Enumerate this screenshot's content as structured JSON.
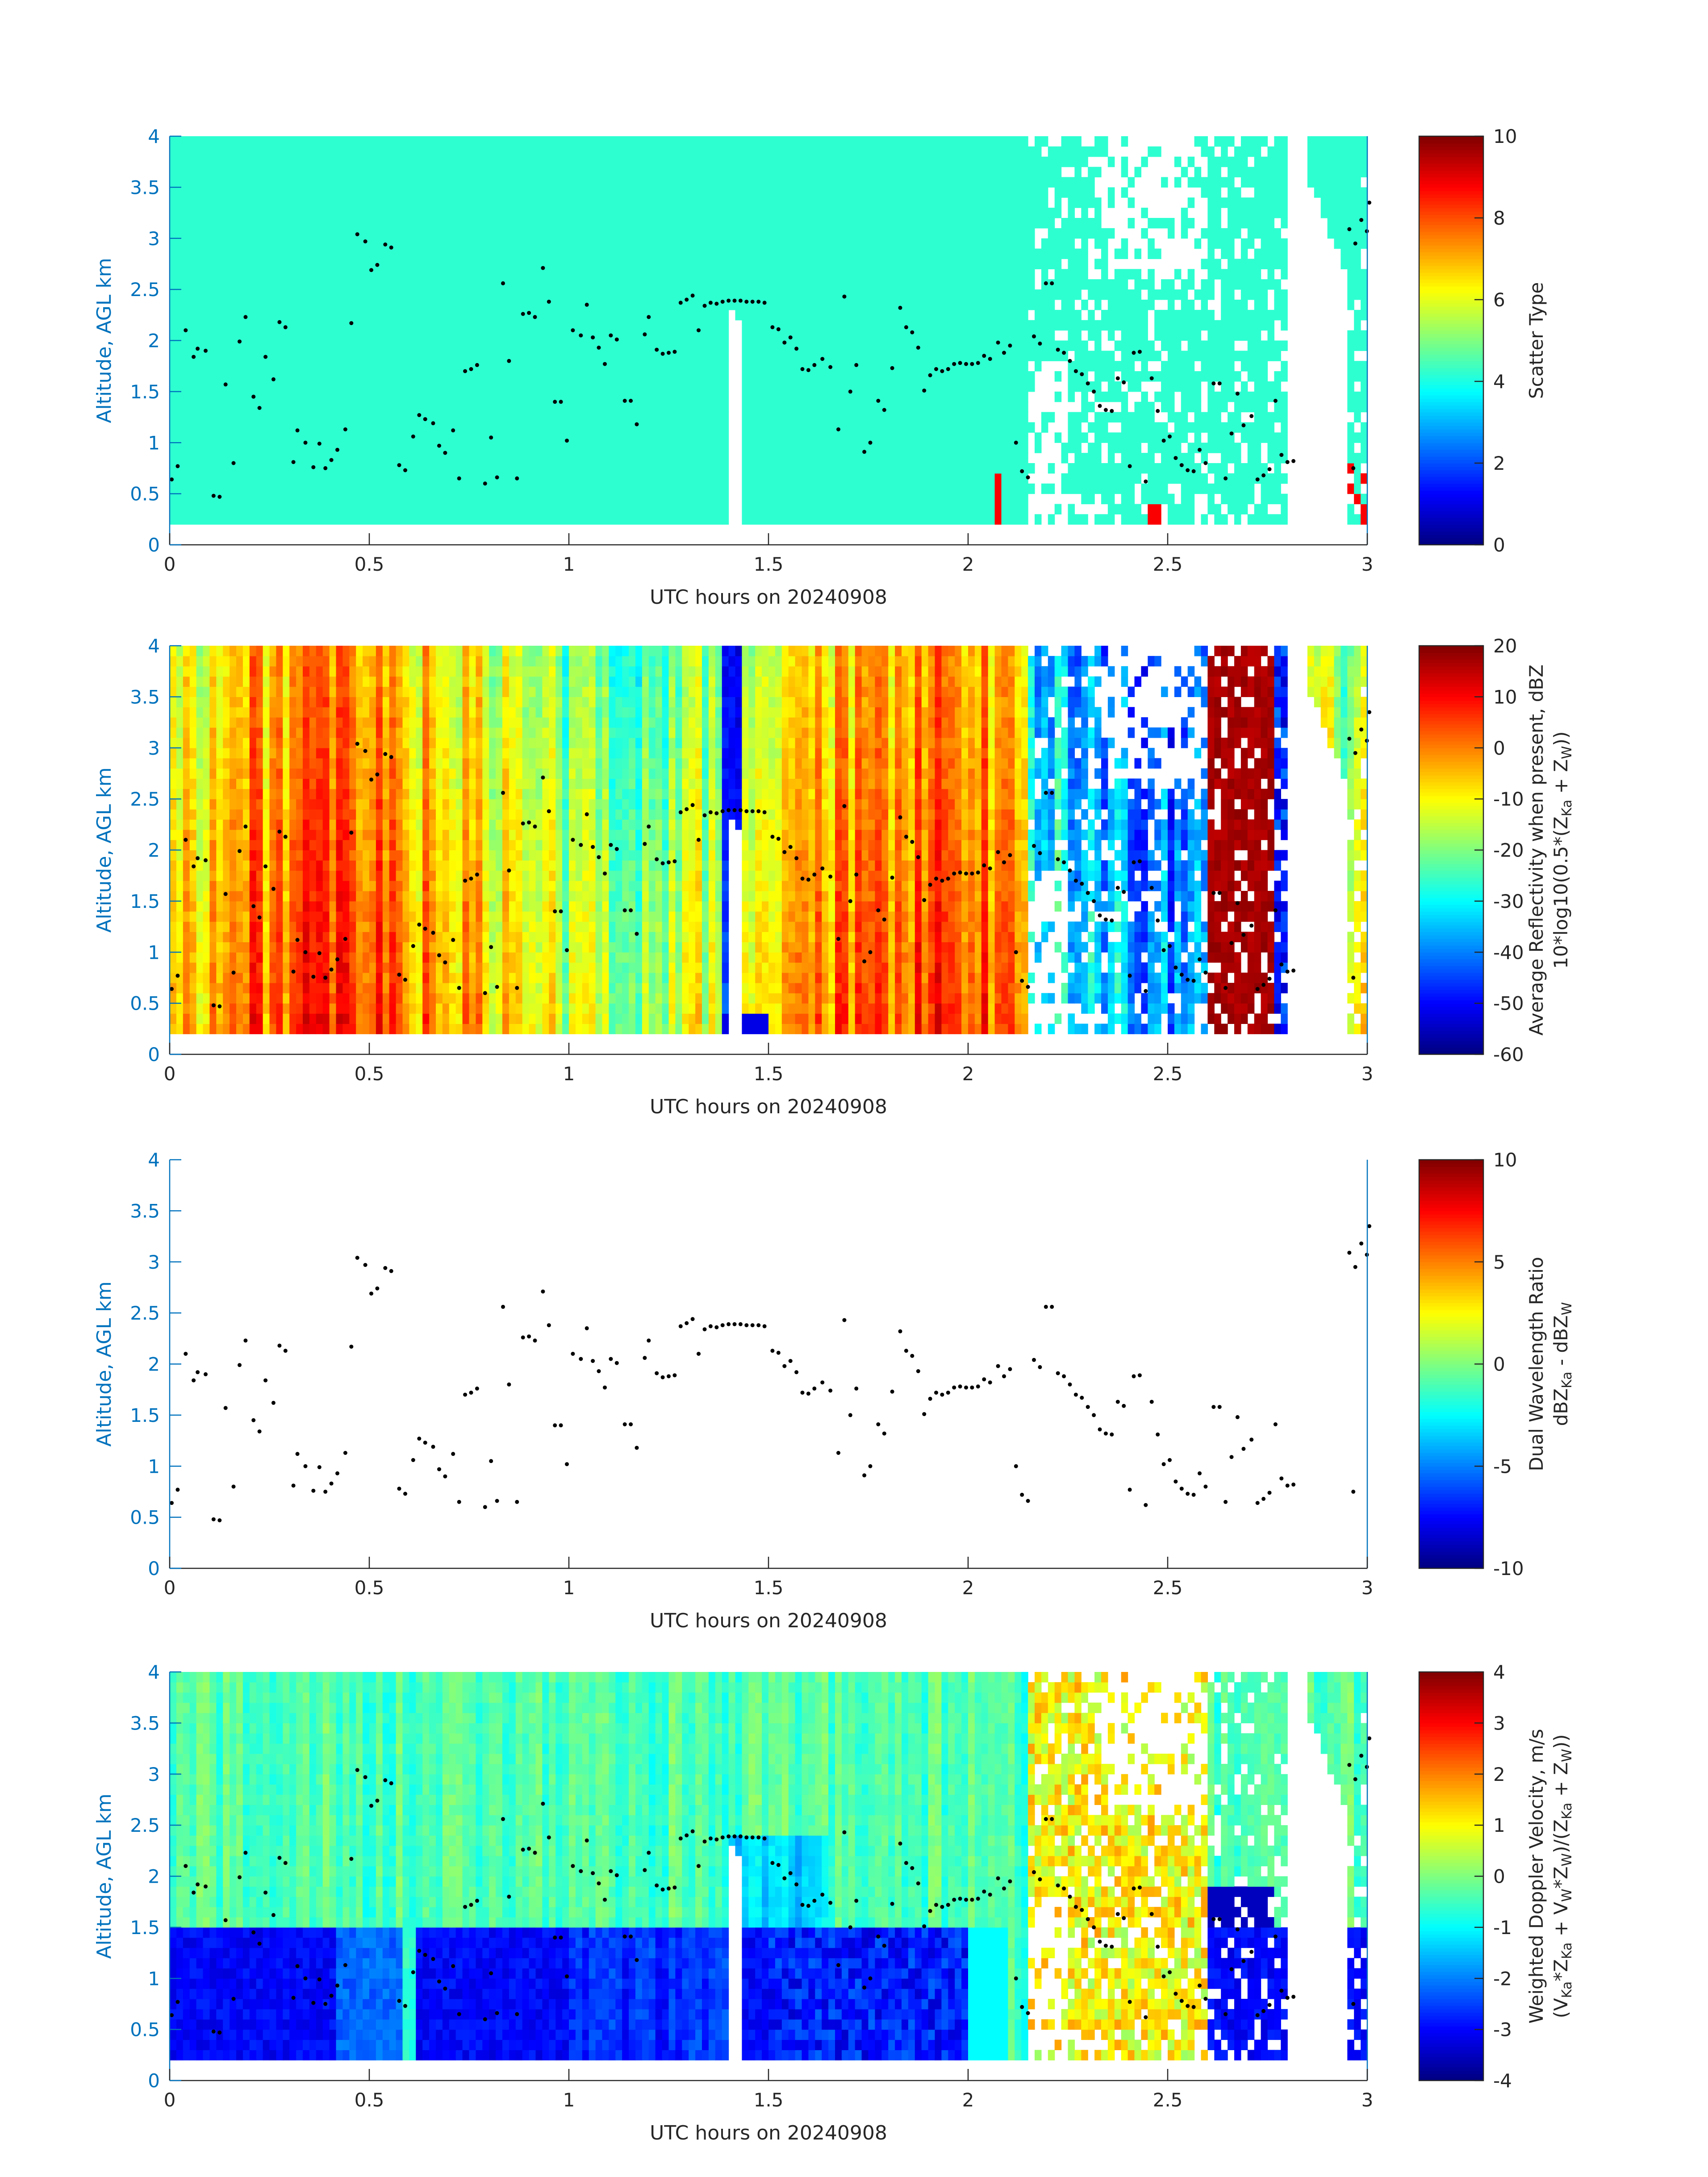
{
  "chart_data": [
    {
      "type": "heatmap",
      "xlabel": "UTC hours on 20240908",
      "ylabel": "Altitude, AGL km",
      "xlim": [
        0,
        3
      ],
      "ylim": [
        0,
        4
      ],
      "xticks": [
        "0",
        "0.5",
        "1",
        "1.5",
        "2",
        "2.5",
        "3"
      ],
      "yticks": [
        "0",
        "0.5",
        "1",
        "1.5",
        "2",
        "2.5",
        "3",
        "3.5",
        "4"
      ],
      "colorbar": {
        "label": "Scatter Type",
        "ticks": [
          "0",
          "2",
          "4",
          "6",
          "8",
          "10"
        ],
        "range": [
          0,
          10
        ],
        "colormap": "jet"
      },
      "dominant_value": 4.2,
      "secondary_value": 8.8
    },
    {
      "type": "heatmap",
      "xlabel": "UTC hours on 20240908",
      "ylabel": "Altitude, AGL km",
      "xlim": [
        0,
        3
      ],
      "ylim": [
        0,
        4
      ],
      "xticks": [
        "0",
        "0.5",
        "1",
        "1.5",
        "2",
        "2.5",
        "3"
      ],
      "yticks": [
        "0",
        "0.5",
        "1",
        "1.5",
        "2",
        "2.5",
        "3",
        "3.5",
        "4"
      ],
      "colorbar": {
        "label_line1": "Average Reflectivity when present, dBZ",
        "label_line2": "10*log10(0.5*(Z",
        "label_sub1": "Ka",
        "label_mid": " + Z",
        "label_sub2": "W",
        "label_end": "))",
        "ticks": [
          "-60",
          "-50",
          "-40",
          "-30",
          "-20",
          "-10",
          "0",
          "10",
          "20"
        ],
        "range": [
          -60,
          20
        ],
        "colormap": "jet"
      }
    },
    {
      "type": "heatmap",
      "xlabel": "UTC hours on 20240908",
      "ylabel": "Altitude, AGL km",
      "xlim": [
        0,
        3
      ],
      "ylim": [
        0,
        4
      ],
      "xticks": [
        "0",
        "0.5",
        "1",
        "1.5",
        "2",
        "2.5",
        "3"
      ],
      "yticks": [
        "0",
        "0.5",
        "1",
        "1.5",
        "2",
        "2.5",
        "3",
        "3.5",
        "4"
      ],
      "colorbar": {
        "label_line1": "Dual Wavelength Ratio",
        "label_line2": "dBZ",
        "label_sub1": "Ka",
        "label_mid": " - dBZ",
        "label_sub2": "W",
        "label_end": "",
        "ticks": [
          "-10",
          "-5",
          "0",
          "5",
          "10"
        ],
        "range": [
          -10,
          10
        ],
        "colormap": "jet"
      }
    },
    {
      "type": "heatmap",
      "xlabel": "UTC hours on 20240908",
      "ylabel": "Altitude, AGL km",
      "xlim": [
        0,
        3
      ],
      "ylim": [
        0,
        4
      ],
      "xticks": [
        "0",
        "0.5",
        "1",
        "1.5",
        "2",
        "2.5",
        "3"
      ],
      "yticks": [
        "0",
        "0.5",
        "1",
        "1.5",
        "2",
        "2.5",
        "3",
        "3.5",
        "4"
      ],
      "colorbar": {
        "label_line1": "Weighted Doppler Velocity, m/s",
        "label_line2": "(V",
        "label_sub1": "Ka",
        "label_mid": "*Z",
        "label_sub2": "Ka",
        "label_end": " + V",
        "label_sub3": "W",
        "label_end2": "*Z",
        "label_sub4": "W",
        "label_end3": ")/(Z",
        "label_sub5": "Ka",
        "label_end4": " + Z",
        "label_sub6": "W",
        "label_end5": "))",
        "ticks": [
          "-4",
          "-3",
          "-2",
          "-1",
          "0",
          "1",
          "2",
          "3",
          "4"
        ],
        "range": [
          -4,
          4
        ],
        "colormap": "jet"
      }
    }
  ],
  "cloud_base_points": [
    [
      0.005,
      0.64
    ],
    [
      0.02,
      0.77
    ],
    [
      0.04,
      2.1
    ],
    [
      0.06,
      1.84
    ],
    [
      0.07,
      1.92
    ],
    [
      0.09,
      1.9
    ],
    [
      0.11,
      0.48
    ],
    [
      0.125,
      0.47
    ],
    [
      0.14,
      1.57
    ],
    [
      0.16,
      0.8
    ],
    [
      0.175,
      1.99
    ],
    [
      0.19,
      2.23
    ],
    [
      0.21,
      1.45
    ],
    [
      0.225,
      1.34
    ],
    [
      0.24,
      1.84
    ],
    [
      0.26,
      1.62
    ],
    [
      0.275,
      2.18
    ],
    [
      0.29,
      2.13
    ],
    [
      0.31,
      0.81
    ],
    [
      0.32,
      1.12
    ],
    [
      0.34,
      1.0
    ],
    [
      0.36,
      0.76
    ],
    [
      0.375,
      0.99
    ],
    [
      0.39,
      0.75
    ],
    [
      0.405,
      0.83
    ],
    [
      0.42,
      0.93
    ],
    [
      0.44,
      1.13
    ],
    [
      0.455,
      2.17
    ],
    [
      0.47,
      3.04
    ],
    [
      0.49,
      2.97
    ],
    [
      0.505,
      2.69
    ],
    [
      0.52,
      2.74
    ],
    [
      0.54,
      2.94
    ],
    [
      0.555,
      2.91
    ],
    [
      0.575,
      0.78
    ],
    [
      0.59,
      0.73
    ],
    [
      0.61,
      1.06
    ],
    [
      0.625,
      1.27
    ],
    [
      0.64,
      1.23
    ],
    [
      0.66,
      1.19
    ],
    [
      0.675,
      0.97
    ],
    [
      0.69,
      0.9
    ],
    [
      0.71,
      1.12
    ],
    [
      0.725,
      0.65
    ],
    [
      0.74,
      1.7
    ],
    [
      0.755,
      1.72
    ],
    [
      0.77,
      1.76
    ],
    [
      0.79,
      0.6
    ],
    [
      0.805,
      1.05
    ],
    [
      0.82,
      0.66
    ],
    [
      0.835,
      2.56
    ],
    [
      0.85,
      1.8
    ],
    [
      0.87,
      0.65
    ],
    [
      0.885,
      2.26
    ],
    [
      0.9,
      2.27
    ],
    [
      0.915,
      2.23
    ],
    [
      0.935,
      2.71
    ],
    [
      0.95,
      2.38
    ],
    [
      0.965,
      1.4
    ],
    [
      0.98,
      1.4
    ],
    [
      0.995,
      1.02
    ],
    [
      1.01,
      2.1
    ],
    [
      1.03,
      2.05
    ],
    [
      1.045,
      2.35
    ],
    [
      1.06,
      2.03
    ],
    [
      1.075,
      1.93
    ],
    [
      1.09,
      1.77
    ],
    [
      1.105,
      2.05
    ],
    [
      1.12,
      2.01
    ],
    [
      1.14,
      1.41
    ],
    [
      1.155,
      1.41
    ],
    [
      1.17,
      1.18
    ],
    [
      1.19,
      2.06
    ],
    [
      1.2,
      2.23
    ],
    [
      1.22,
      1.91
    ],
    [
      1.235,
      1.87
    ],
    [
      1.25,
      1.88
    ],
    [
      1.265,
      1.89
    ],
    [
      1.28,
      2.37
    ],
    [
      1.295,
      2.4
    ],
    [
      1.31,
      2.44
    ],
    [
      1.325,
      2.1
    ],
    [
      1.34,
      2.34
    ],
    [
      1.355,
      2.37
    ],
    [
      1.37,
      2.36
    ],
    [
      1.385,
      2.38
    ],
    [
      1.4,
      2.39
    ],
    [
      1.415,
      2.39
    ],
    [
      1.43,
      2.39
    ],
    [
      1.445,
      2.38
    ],
    [
      1.46,
      2.38
    ],
    [
      1.475,
      2.38
    ],
    [
      1.49,
      2.37
    ],
    [
      1.51,
      2.13
    ],
    [
      1.525,
      2.11
    ],
    [
      1.54,
      1.98
    ],
    [
      1.555,
      2.03
    ],
    [
      1.57,
      1.92
    ],
    [
      1.585,
      1.72
    ],
    [
      1.6,
      1.71
    ],
    [
      1.615,
      1.76
    ],
    [
      1.635,
      1.82
    ],
    [
      1.655,
      1.74
    ],
    [
      1.675,
      1.13
    ],
    [
      1.69,
      2.43
    ],
    [
      1.705,
      1.5
    ],
    [
      1.72,
      1.76
    ],
    [
      1.74,
      0.91
    ],
    [
      1.755,
      1.0
    ],
    [
      1.775,
      1.41
    ],
    [
      1.79,
      1.32
    ],
    [
      1.81,
      1.73
    ],
    [
      1.83,
      2.32
    ],
    [
      1.845,
      2.13
    ],
    [
      1.86,
      2.08
    ],
    [
      1.875,
      1.93
    ],
    [
      1.89,
      1.51
    ],
    [
      1.905,
      1.66
    ],
    [
      1.92,
      1.72
    ],
    [
      1.935,
      1.7
    ],
    [
      1.95,
      1.72
    ],
    [
      1.965,
      1.77
    ],
    [
      1.98,
      1.78
    ],
    [
      1.995,
      1.77
    ],
    [
      2.01,
      1.77
    ],
    [
      2.025,
      1.78
    ],
    [
      2.04,
      1.85
    ],
    [
      2.055,
      1.82
    ],
    [
      2.075,
      1.98
    ],
    [
      2.09,
      1.88
    ],
    [
      2.105,
      1.95
    ],
    [
      2.12,
      1.0
    ],
    [
      2.135,
      0.72
    ],
    [
      2.15,
      0.66
    ],
    [
      2.165,
      2.04
    ],
    [
      2.18,
      1.97
    ],
    [
      2.195,
      2.56
    ],
    [
      2.21,
      2.56
    ],
    [
      2.225,
      1.91
    ],
    [
      2.24,
      1.88
    ],
    [
      2.255,
      1.8
    ],
    [
      2.27,
      1.7
    ],
    [
      2.285,
      1.67
    ],
    [
      2.3,
      1.58
    ],
    [
      2.315,
      1.5
    ],
    [
      2.33,
      1.36
    ],
    [
      2.345,
      1.32
    ],
    [
      2.36,
      1.31
    ],
    [
      2.375,
      1.63
    ],
    [
      2.39,
      1.59
    ],
    [
      2.405,
      0.77
    ],
    [
      2.415,
      1.88
    ],
    [
      2.43,
      1.89
    ],
    [
      2.445,
      0.62
    ],
    [
      2.46,
      1.63
    ],
    [
      2.475,
      1.31
    ],
    [
      2.49,
      1.02
    ],
    [
      2.505,
      1.06
    ],
    [
      2.52,
      0.85
    ],
    [
      2.535,
      0.78
    ],
    [
      2.55,
      0.73
    ],
    [
      2.565,
      0.72
    ],
    [
      2.58,
      0.93
    ],
    [
      2.595,
      0.8
    ],
    [
      2.615,
      1.58
    ],
    [
      2.63,
      1.58
    ],
    [
      2.645,
      0.65
    ],
    [
      2.66,
      1.09
    ],
    [
      2.675,
      1.48
    ],
    [
      2.69,
      1.17
    ],
    [
      2.71,
      1.26
    ],
    [
      2.725,
      0.64
    ],
    [
      2.74,
      0.68
    ],
    [
      2.755,
      0.74
    ],
    [
      2.77,
      1.41
    ],
    [
      2.785,
      0.88
    ],
    [
      2.8,
      0.81
    ],
    [
      2.815,
      0.82
    ],
    [
      2.955,
      3.09
    ],
    [
      2.97,
      2.95
    ],
    [
      2.985,
      3.18
    ],
    [
      2.999,
      3.07
    ],
    [
      3.005,
      3.35
    ],
    [
      2.965,
      0.75
    ]
  ]
}
